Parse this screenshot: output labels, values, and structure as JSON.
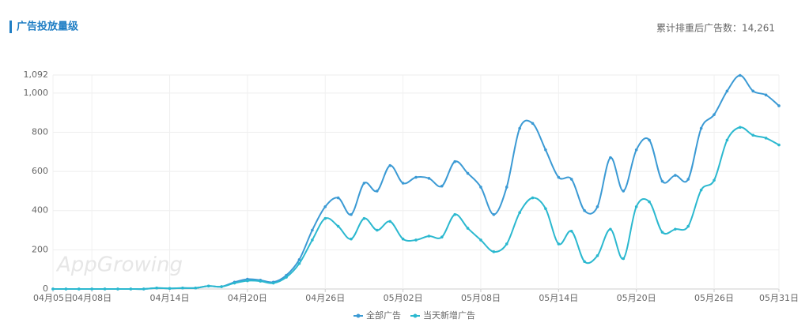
{
  "header": {
    "title": "广告投放量级",
    "summary": "累计排重后广告数：14,261"
  },
  "watermark": "AppGrowing",
  "chart_data": {
    "type": "line",
    "categories": [
      "04月05日",
      null,
      null,
      "04月08日",
      null,
      null,
      null,
      null,
      null,
      "04月14日",
      null,
      null,
      null,
      null,
      null,
      "04月20日",
      null,
      null,
      null,
      null,
      null,
      "04月26日",
      null,
      null,
      null,
      null,
      null,
      "05月02日",
      null,
      null,
      null,
      null,
      null,
      "05月08日",
      null,
      null,
      null,
      null,
      null,
      "05月14日",
      null,
      null,
      null,
      null,
      null,
      "05月20日",
      null,
      null,
      null,
      null,
      null,
      "05月26日",
      null,
      null,
      null,
      null,
      "05月31日"
    ],
    "series": [
      {
        "name": "全部广告",
        "color": "#3b9ad4",
        "values": [
          0,
          0,
          0,
          0,
          0,
          0,
          0,
          0,
          5,
          3,
          5,
          5,
          15,
          12,
          35,
          50,
          45,
          35,
          70,
          150,
          300,
          420,
          465,
          380,
          540,
          500,
          630,
          540,
          570,
          565,
          525,
          650,
          590,
          520,
          380,
          520,
          820,
          845,
          710,
          570,
          560,
          400,
          420,
          670,
          500,
          710,
          760,
          550,
          580,
          560,
          820,
          890,
          1010,
          1090,
          1010,
          990,
          935
        ]
      },
      {
        "name": "当天新增广告",
        "color": "#2bb8cf",
        "values": [
          0,
          0,
          0,
          0,
          0,
          0,
          0,
          0,
          5,
          3,
          5,
          5,
          15,
          12,
          30,
          42,
          40,
          30,
          60,
          130,
          250,
          360,
          320,
          255,
          360,
          300,
          345,
          255,
          250,
          270,
          265,
          380,
          310,
          250,
          190,
          230,
          390,
          465,
          410,
          230,
          295,
          140,
          170,
          305,
          155,
          420,
          445,
          290,
          305,
          320,
          505,
          555,
          760,
          825,
          785,
          770,
          735
        ]
      }
    ],
    "ylim": [
      0,
      1092
    ],
    "yticks": [
      0,
      200,
      400,
      600,
      800,
      {
        "value": 1000,
        "label": "1,000"
      },
      {
        "value": 1092,
        "label": "1,092"
      }
    ],
    "grid": true,
    "legend": "bottom"
  }
}
